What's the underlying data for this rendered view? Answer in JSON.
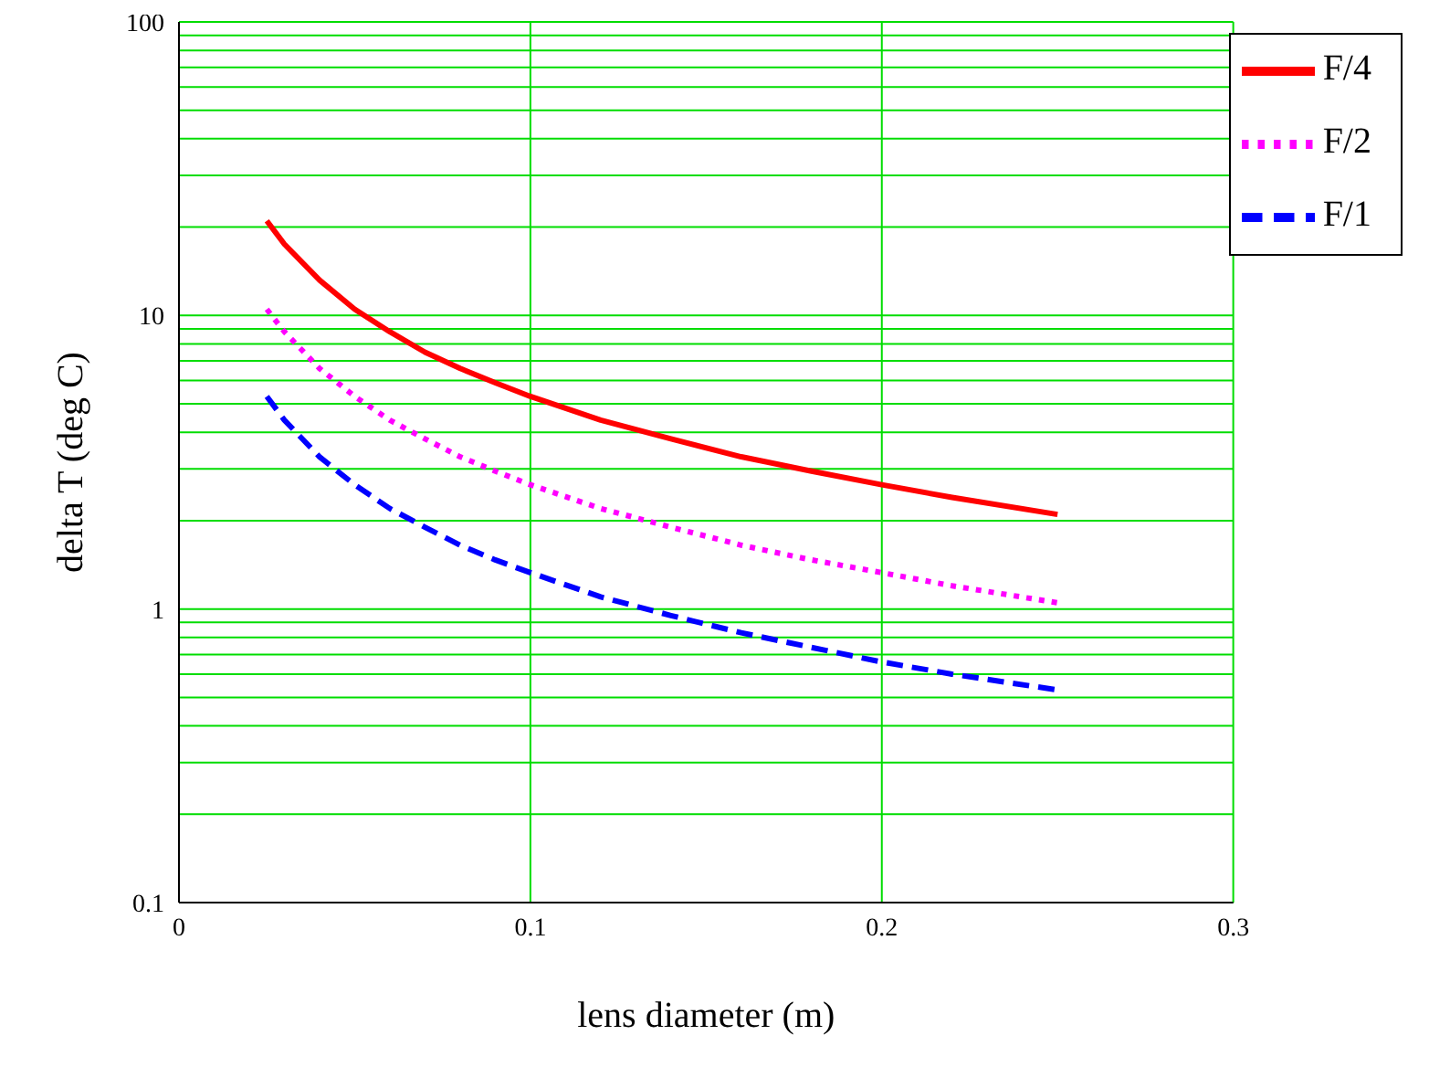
{
  "chart_data": {
    "type": "line",
    "xlabel": "lens diameter (m)",
    "ylabel": "delta T (deg C)",
    "x": [
      0.025,
      0.03,
      0.04,
      0.05,
      0.06,
      0.07,
      0.08,
      0.09,
      0.1,
      0.12,
      0.14,
      0.16,
      0.18,
      0.2,
      0.22,
      0.25
    ],
    "series": [
      {
        "name": "F/4",
        "color": "#ff0000",
        "line_style": "solid",
        "values": [
          21,
          17.5,
          13.2,
          10.5,
          8.8,
          7.5,
          6.6,
          5.9,
          5.3,
          4.4,
          3.8,
          3.3,
          2.95,
          2.65,
          2.4,
          2.1
        ]
      },
      {
        "name": "F/2",
        "color": "#ff00ff",
        "line_style": "dotted",
        "values": [
          10.5,
          8.8,
          6.6,
          5.3,
          4.4,
          3.8,
          3.3,
          2.95,
          2.65,
          2.2,
          1.9,
          1.65,
          1.47,
          1.33,
          1.2,
          1.05
        ]
      },
      {
        "name": "F/1",
        "color": "#0000ff",
        "line_style": "dashed",
        "values": [
          5.3,
          4.4,
          3.3,
          2.65,
          2.2,
          1.9,
          1.65,
          1.47,
          1.33,
          1.1,
          0.95,
          0.83,
          0.74,
          0.66,
          0.6,
          0.53
        ]
      }
    ],
    "xlim": [
      0,
      0.3
    ],
    "xticks": [
      0,
      0.1,
      0.2,
      0.3
    ],
    "ylim": [
      0.1,
      100
    ],
    "yticks": [
      0.1,
      {
        "value": 0.2,
        "label": null
      },
      {
        "value": 0.3,
        "label": null
      },
      {
        "value": 0.4,
        "label": null
      },
      {
        "value": 0.5,
        "label": null
      },
      {
        "value": 0.6,
        "label": null
      },
      {
        "value": 0.7,
        "label": null
      },
      {
        "value": 0.8,
        "label": null
      },
      {
        "value": 0.9,
        "label": null
      },
      1,
      {
        "value": 2,
        "label": null
      },
      {
        "value": 3,
        "label": null
      },
      {
        "value": 4,
        "label": null
      },
      {
        "value": 5,
        "label": null
      },
      {
        "value": 6,
        "label": null
      },
      {
        "value": 7,
        "label": null
      },
      {
        "value": 8,
        "label": null
      },
      {
        "value": 9,
        "label": null
      },
      10,
      {
        "value": 20,
        "label": null
      },
      {
        "value": 30,
        "label": null
      },
      {
        "value": 40,
        "label": null
      },
      {
        "value": 50,
        "label": null
      },
      {
        "value": 60,
        "label": null
      },
      {
        "value": 70,
        "label": null
      },
      {
        "value": 80,
        "label": null
      },
      {
        "value": 90,
        "label": null
      },
      100
    ],
    "log": "y",
    "grid": true,
    "legend": "top right",
    "marker": "none"
  }
}
